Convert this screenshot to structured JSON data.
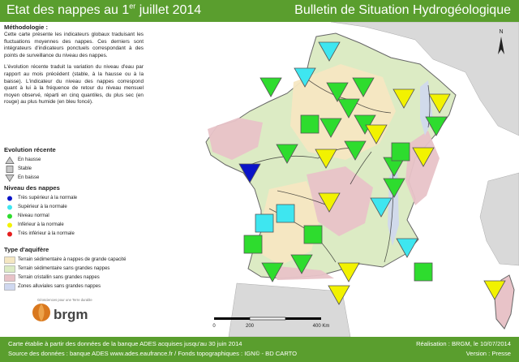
{
  "header": {
    "title_prefix": "Etat des nappes au 1",
    "title_sup": "er",
    "title_suffix": " juillet 2014",
    "subtitle": "Bulletin de Situation Hydrogéologique"
  },
  "methodology": {
    "heading": "Méthodologie :",
    "paragraph1": "Cette carte présente les indicateurs globaux traduisant les fluctuations moyennes des nappes. Ces derniers sont intégrateurs d'indicateurs ponctuels correspondant à des points de surveillance du niveau des nappes.",
    "paragraph2": "L'évolution récente traduit la variation du niveau d'eau par rapport au mois précédent (stable, à la hausse ou à la baisse). L'indicateur du niveau des nappes correspond quant à lui à la fréquence de retour du niveau mensuel moyen observé, réparti en cinq quantiles, du plus sec (en rouge) au plus humide (en bleu foncé)."
  },
  "legend_evolution": {
    "heading": "Evolution récente",
    "items": [
      {
        "label": "En hausse",
        "shape": "triangle-up"
      },
      {
        "label": "Stable",
        "shape": "square"
      },
      {
        "label": "En baisse",
        "shape": "triangle-down"
      }
    ]
  },
  "legend_level": {
    "heading": "Niveau des nappes",
    "items": [
      {
        "label": "Très supérieur à la normale",
        "color": "#0a14c8"
      },
      {
        "label": "Supérieur à la normale",
        "color": "#3ee6f0"
      },
      {
        "label": "Niveau normal",
        "color": "#2edc2e"
      },
      {
        "label": "Inférieur à la normale",
        "color": "#f2f200"
      },
      {
        "label": "Très inférieur à la normale",
        "color": "#e61e1e"
      }
    ]
  },
  "legend_aquifer": {
    "heading": "Type d'aquifère",
    "items": [
      {
        "label": "Terrain sédimentaire à nappes de grande capacité",
        "color": "#f5e7c2"
      },
      {
        "label": "Terrain sédimentaire sans grandes nappes",
        "color": "#dcebc4"
      },
      {
        "label": "Terrain cristallin sans grandes nappes",
        "color": "#e8c3c8"
      },
      {
        "label": "Zones alluviales sans grandes nappes",
        "color": "#cfd8f0"
      }
    ]
  },
  "logo": {
    "name": "brgm",
    "tagline": "Géosciences pour une Terre durable"
  },
  "map": {
    "north_label": "N",
    "scale_labels": [
      "0",
      "200",
      "400 Km"
    ],
    "colors": {
      "sea": "#ffffff",
      "land": "#dcebc4",
      "land_outline": "#666666",
      "neighbor": "#d9d9d9",
      "river": "#222222",
      "sedimentary_large": "#f5e7c2",
      "crystalline": "#e8c3c8",
      "alluvial": "#cfd8f0"
    },
    "indicators": [
      {
        "id": "i1",
        "evolution": "down",
        "level": "above"
      },
      {
        "id": "i2",
        "evolution": "down",
        "level": "above"
      },
      {
        "id": "i3",
        "evolution": "down",
        "level": "normal"
      },
      {
        "id": "i4",
        "evolution": "down",
        "level": "normal"
      },
      {
        "id": "i5",
        "evolution": "down",
        "level": "normal"
      },
      {
        "id": "i6",
        "evolution": "down",
        "level": "normal"
      },
      {
        "id": "i7",
        "evolution": "down",
        "level": "below"
      },
      {
        "id": "i8",
        "evolution": "down",
        "level": "below"
      },
      {
        "id": "i9",
        "evolution": "down",
        "level": "normal"
      },
      {
        "id": "i10",
        "evolution": "down",
        "level": "normal"
      },
      {
        "id": "i11",
        "evolution": "down",
        "level": "normal"
      },
      {
        "id": "i12",
        "evolution": "stable",
        "level": "normal"
      },
      {
        "id": "i13",
        "evolution": "down",
        "level": "normal"
      },
      {
        "id": "i14",
        "evolution": "down",
        "level": "below"
      },
      {
        "id": "i15",
        "evolution": "down",
        "level": "normal"
      },
      {
        "id": "i16",
        "evolution": "down",
        "level": "below"
      },
      {
        "id": "i17",
        "evolution": "down",
        "level": "normal"
      },
      {
        "id": "i18",
        "evolution": "stable",
        "level": "normal"
      },
      {
        "id": "i19",
        "evolution": "down",
        "level": "below"
      },
      {
        "id": "i20",
        "evolution": "down",
        "level": "well_above"
      },
      {
        "id": "i21",
        "evolution": "down",
        "level": "normal"
      },
      {
        "id": "i22",
        "evolution": "down",
        "level": "above"
      },
      {
        "id": "i23",
        "evolution": "stable",
        "level": "above"
      },
      {
        "id": "i24",
        "evolution": "stable",
        "level": "above"
      },
      {
        "id": "i25",
        "evolution": "down",
        "level": "below"
      },
      {
        "id": "i26",
        "evolution": "stable",
        "level": "normal"
      },
      {
        "id": "i27",
        "evolution": "stable",
        "level": "normal"
      },
      {
        "id": "i28",
        "evolution": "down",
        "level": "above"
      },
      {
        "id": "i29",
        "evolution": "down",
        "level": "normal"
      },
      {
        "id": "i30",
        "evolution": "down",
        "level": "normal"
      },
      {
        "id": "i31",
        "evolution": "down",
        "level": "below"
      },
      {
        "id": "i32",
        "evolution": "stable",
        "level": "normal"
      },
      {
        "id": "i33",
        "evolution": "down",
        "level": "below"
      },
      {
        "id": "i34",
        "evolution": "down",
        "level": "below"
      }
    ]
  },
  "footer": {
    "line1_left": "Carte établie à partir des données de la banque ADES acquises jusqu'au 30  juin 2014",
    "line2_left": "Source des données : banque ADES www.ades.eaufrance.fr / Fonds topographiques : IGN© - BD CARTO",
    "line1_right": "Réalisation : BRGM, le 10/07/2014",
    "line2_right": "Version : Presse"
  }
}
